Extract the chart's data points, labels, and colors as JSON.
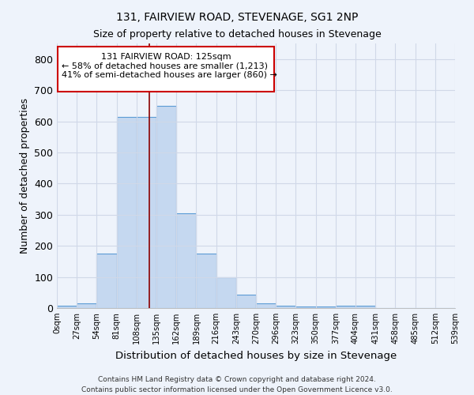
{
  "title": "131, FAIRVIEW ROAD, STEVENAGE, SG1 2NP",
  "subtitle": "Size of property relative to detached houses in Stevenage",
  "xlabel": "Distribution of detached houses by size in Stevenage",
  "ylabel": "Number of detached properties",
  "footer_line1": "Contains HM Land Registry data © Crown copyright and database right 2024.",
  "footer_line2": "Contains public sector information licensed under the Open Government Licence v3.0.",
  "bin_edges": [
    0,
    27,
    54,
    81,
    108,
    135,
    162,
    189,
    216,
    243,
    270,
    297,
    324,
    351,
    378,
    405,
    432,
    459,
    486,
    513,
    540
  ],
  "bar_heights": [
    8,
    15,
    175,
    615,
    615,
    650,
    305,
    175,
    100,
    42,
    15,
    8,
    5,
    5,
    8,
    8,
    1,
    1,
    1,
    1
  ],
  "bar_color": "#c5d8f0",
  "bar_edge_color": "#5b9bd5",
  "background_color": "#eef3fb",
  "grid_color": "#d0d8e8",
  "red_line_x": 125,
  "annotation_text_line1": "131 FAIRVIEW ROAD: 125sqm",
  "annotation_text_line2": "← 58% of detached houses are smaller (1,213)",
  "annotation_text_line3": "41% of semi-detached houses are larger (860) →",
  "annotation_box_color": "#ffffff",
  "annotation_box_edge": "#cc0000",
  "ylim": [
    0,
    850
  ],
  "xlim": [
    0,
    540
  ],
  "yticks": [
    0,
    100,
    200,
    300,
    400,
    500,
    600,
    700,
    800
  ],
  "tick_labels": [
    "0sqm",
    "27sqm",
    "54sqm",
    "81sqm",
    "108sqm",
    "135sqm",
    "162sqm",
    "189sqm",
    "216sqm",
    "243sqm",
    "270sqm",
    "296sqm",
    "323sqm",
    "350sqm",
    "377sqm",
    "404sqm",
    "431sqm",
    "458sqm",
    "485sqm",
    "512sqm",
    "539sqm"
  ]
}
